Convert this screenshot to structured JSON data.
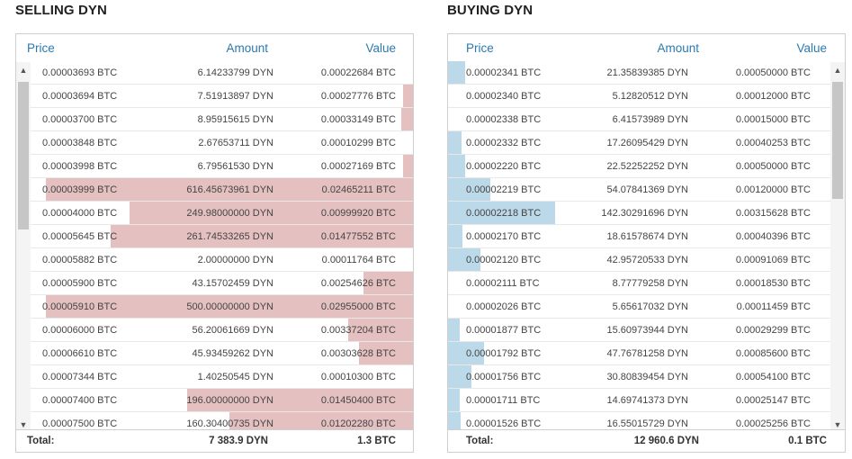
{
  "selling": {
    "title": "SELLING DYN",
    "columns": {
      "price": "Price",
      "amount": "Amount",
      "value": "Value"
    },
    "total_label": "Total:",
    "total_amount": "7 383.9 DYN",
    "total_value": "1.3 BTC",
    "bar_color": "#e5c0c1",
    "rows": [
      {
        "price": "0.00003693 BTC",
        "amount": "6.14233799 DYN",
        "value": "0.00022684 BTC",
        "depth": 0
      },
      {
        "price": "0.00003694 BTC",
        "amount": "7.51913897 DYN",
        "value": "0.00027776 BTC",
        "depth": 0.025
      },
      {
        "price": "0.00003700 BTC",
        "amount": "8.95915615 DYN",
        "value": "0.00033149 BTC",
        "depth": 0.03
      },
      {
        "price": "0.00003848 BTC",
        "amount": "2.67653711 DYN",
        "value": "0.00010299 BTC",
        "depth": 0
      },
      {
        "price": "0.00003998 BTC",
        "amount": "6.79561530 DYN",
        "value": "0.00027169 BTC",
        "depth": 0.025
      },
      {
        "price": "0.00003999 BTC",
        "amount": "616.45673961 DYN",
        "value": "0.02465211 BTC",
        "depth": 0.96
      },
      {
        "price": "0.00004000 BTC",
        "amount": "249.98000000 DYN",
        "value": "0.00999920 BTC",
        "depth": 0.74
      },
      {
        "price": "0.00005645 BTC",
        "amount": "261.74533265 DYN",
        "value": "0.01477552 BTC",
        "depth": 0.79
      },
      {
        "price": "0.00005882 BTC",
        "amount": "2.00000000 DYN",
        "value": "0.00011764 BTC",
        "depth": 0
      },
      {
        "price": "0.00005900 BTC",
        "amount": "43.15702459 DYN",
        "value": "0.00254626 BTC",
        "depth": 0.13
      },
      {
        "price": "0.00005910 BTC",
        "amount": "500.00000000 DYN",
        "value": "0.02955000 BTC",
        "depth": 0.96
      },
      {
        "price": "0.00006000 BTC",
        "amount": "56.20061669 DYN",
        "value": "0.00337204 BTC",
        "depth": 0.17
      },
      {
        "price": "0.00006610 BTC",
        "amount": "45.93459262 DYN",
        "value": "0.00303628 BTC",
        "depth": 0.14
      },
      {
        "price": "0.00007344 BTC",
        "amount": "1.40250545 DYN",
        "value": "0.00010300 BTC",
        "depth": 0
      },
      {
        "price": "0.00007400 BTC",
        "amount": "196.00000000 DYN",
        "value": "0.01450400 BTC",
        "depth": 0.59
      },
      {
        "price": "0.00007500 BTC",
        "amount": "160.30400735 DYN",
        "value": "0.01202280 BTC",
        "depth": 0.48
      }
    ]
  },
  "buying": {
    "title": "BUYING DYN",
    "columns": {
      "price": "Price",
      "amount": "Amount",
      "value": "Value"
    },
    "total_label": "Total:",
    "total_amount": "12 960.6 DYN",
    "total_value": "0.1 BTC",
    "bar_color": "#bcd9ea",
    "rows": [
      {
        "price": "0.00002341 BTC",
        "amount": "21.35839385 DYN",
        "value": "0.00050000 BTC",
        "depth": 0.045
      },
      {
        "price": "0.00002340 BTC",
        "amount": "5.12820512 DYN",
        "value": "0.00012000 BTC",
        "depth": 0
      },
      {
        "price": "0.00002338 BTC",
        "amount": "6.41573989 DYN",
        "value": "0.00015000 BTC",
        "depth": 0
      },
      {
        "price": "0.00002332 BTC",
        "amount": "17.26095429 DYN",
        "value": "0.00040253 BTC",
        "depth": 0.035
      },
      {
        "price": "0.00002220 BTC",
        "amount": "22.52252252 DYN",
        "value": "0.00050000 BTC",
        "depth": 0.045
      },
      {
        "price": "0.00002219 BTC",
        "amount": "54.07841369 DYN",
        "value": "0.00120000 BTC",
        "depth": 0.11
      },
      {
        "price": "0.00002218 BTC",
        "amount": "142.30291696 DYN",
        "value": "0.00315628 BTC",
        "depth": 0.28
      },
      {
        "price": "0.00002170 BTC",
        "amount": "18.61578674 DYN",
        "value": "0.00040396 BTC",
        "depth": 0.037
      },
      {
        "price": "0.00002120 BTC",
        "amount": "42.95720533 DYN",
        "value": "0.00091069 BTC",
        "depth": 0.085
      },
      {
        "price": "0.00002111 BTC",
        "amount": "8.77779258 DYN",
        "value": "0.00018530 BTC",
        "depth": 0
      },
      {
        "price": "0.00002026 BTC",
        "amount": "5.65617032 DYN",
        "value": "0.00011459 BTC",
        "depth": 0
      },
      {
        "price": "0.00001877 BTC",
        "amount": "15.60973944 DYN",
        "value": "0.00029299 BTC",
        "depth": 0.03
      },
      {
        "price": "0.00001792 BTC",
        "amount": "47.76781258 DYN",
        "value": "0.00085600 BTC",
        "depth": 0.095
      },
      {
        "price": "0.00001756 BTC",
        "amount": "30.80839454 DYN",
        "value": "0.00054100 BTC",
        "depth": 0.06
      },
      {
        "price": "0.00001711 BTC",
        "amount": "14.69741373 DYN",
        "value": "0.00025147 BTC",
        "depth": 0.03
      },
      {
        "price": "0.00001526 BTC",
        "amount": "16.55015729 DYN",
        "value": "0.00025256 BTC",
        "depth": 0.032
      }
    ]
  },
  "icons": {
    "scroll_up": "scroll-up-arrow-icon",
    "scroll_down": "scroll-down-arrow-icon"
  }
}
